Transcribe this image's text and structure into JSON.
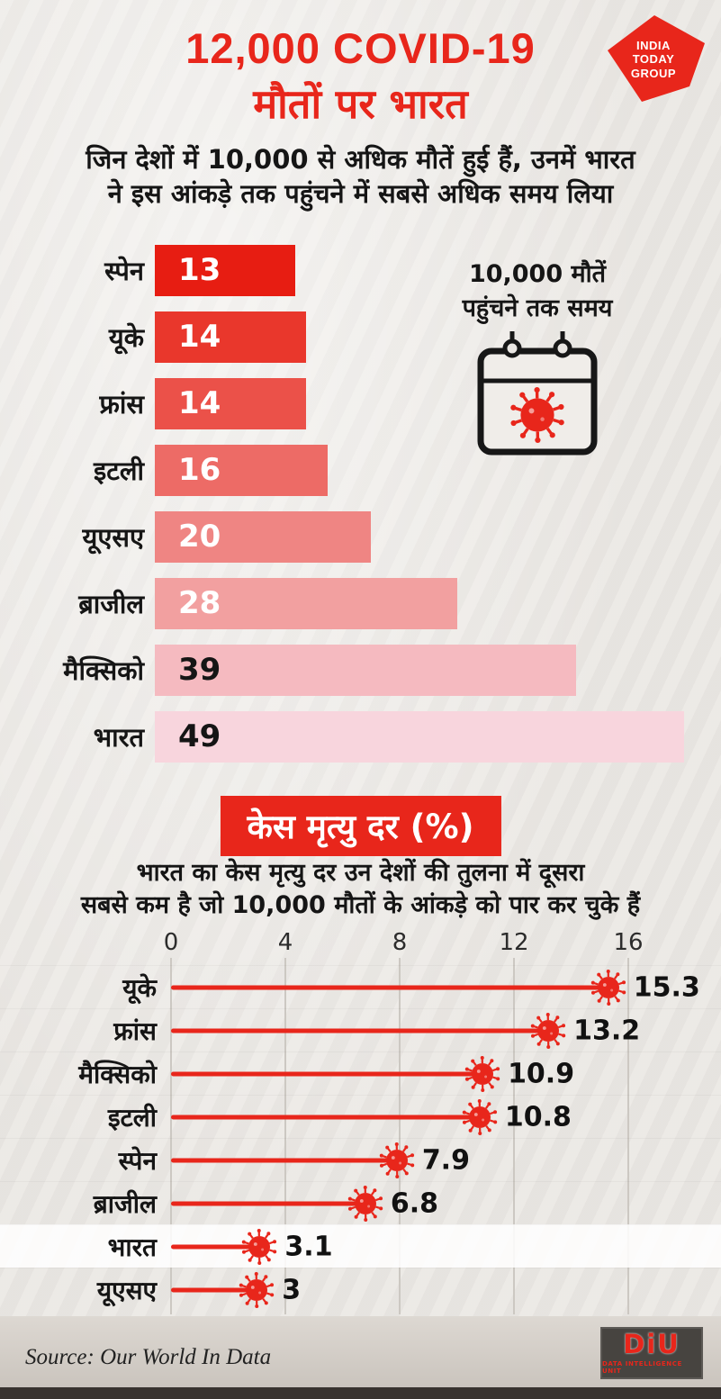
{
  "header": {
    "title_line1": "12,000 COVID-19",
    "title_line2": "मौतों पर भारत",
    "logo": {
      "line1": "INDIA",
      "line2": "TODAY",
      "line3": "GROUP",
      "color": "#e8261b"
    }
  },
  "section1": {
    "subtitle": "जिन देशों में 10,000 से अधिक मौतें हुई हैं, उनमें भारत\nने इस आंकड़े तक पहुंचने में सबसे अधिक समय लिया",
    "annotation": "10,000 मौतें\nपहुंचने तक समय"
  },
  "section2": {
    "title": "केस मृत्यु दर (%)",
    "subtitle": "भारत का केस मृत्यु दर उन देशों की तुलना में दूसरा\nसबसे कम है जो 10,000 मौतों के आंकड़े को पार कर चुके हैं"
  },
  "chart_data": [
    {
      "type": "bar",
      "orientation": "horizontal",
      "title": "10,000 मौतें पहुंचने तक समय",
      "categories": [
        "स्पेन",
        "यूके",
        "फ्रांस",
        "इटली",
        "यूएसए",
        "ब्राजील",
        "मैक्सिको",
        "भारत"
      ],
      "values": [
        13,
        14,
        14,
        16,
        20,
        28,
        39,
        49
      ],
      "highlight_category": "भारत",
      "bar_colors": [
        "#e71d12",
        "#e9372c",
        "#eb5149",
        "#ed6b66",
        "#ef8583",
        "#f2a0a0",
        "#f5bac0",
        "#f8d5dd"
      ],
      "value_text_colors": [
        "#ffffff",
        "#ffffff",
        "#ffffff",
        "#ffffff",
        "#ffffff",
        "#ffffff",
        "#151515",
        "#151515"
      ]
    },
    {
      "type": "lollipop",
      "title": "केस मृत्यु दर (%)",
      "categories": [
        "यूके",
        "फ्रांस",
        "मैक्सिको",
        "इटली",
        "स्पेन",
        "ब्राजील",
        "भारत",
        "यूएसए"
      ],
      "values": [
        15.3,
        13.2,
        10.9,
        10.8,
        7.9,
        6.8,
        3.1,
        3
      ],
      "x_ticks": [
        0,
        4,
        8,
        12,
        16
      ],
      "xlim": [
        0,
        16
      ],
      "highlight_category": "भारत",
      "accent_color": "#e8261b",
      "grid": true
    }
  ],
  "footer": {
    "source": "Source: Our World In Data",
    "diu_title": "DiU",
    "diu_subtitle": "DATA INTELLIGENCE UNIT"
  }
}
